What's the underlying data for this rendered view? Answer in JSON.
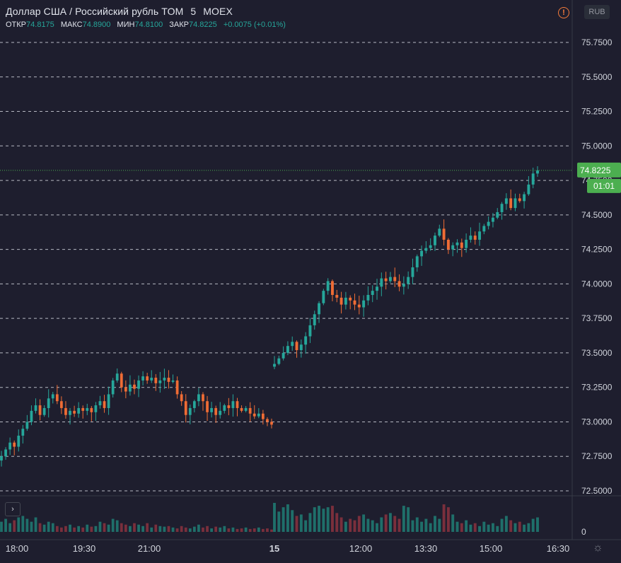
{
  "legend": {
    "title": "Доллар США / Российский рубль TOM",
    "interval": "5",
    "exchange": "MOEX",
    "open_label": "ОТКР",
    "open_value": "74.8175",
    "high_label": "МАКС",
    "high_value": "74.8900",
    "low_label": "МИН",
    "low_value": "74.8100",
    "close_label": "ЗАКР",
    "close_value": "74.8225",
    "change": "+0.0075 (+0.01%)"
  },
  "currency_button": "RUB",
  "expand_button": "›",
  "warning_icon_text": "!",
  "settings_icon": "☼",
  "colors": {
    "background": "#1e1e2e",
    "up": "#26a69a",
    "down": "#ef6c35",
    "grid": "#d1d4dc",
    "last_price": "#4caf50",
    "volume_up": "#1f6f6a",
    "volume_down": "#7a2f3c"
  },
  "chart_data": {
    "type": "candlestick",
    "ylim": [
      72.45,
      75.95
    ],
    "y_ticks": [
      72.5,
      72.75,
      73.0,
      73.25,
      73.5,
      73.75,
      74.0,
      74.25,
      74.5,
      74.75,
      75.0,
      75.25,
      75.5,
      75.75
    ],
    "y_tick_labels": [
      "72.5000",
      "72.7500",
      "73.0000",
      "73.2500",
      "73.5000",
      "73.7500",
      "74.0000",
      "74.2500",
      "74.5000",
      "74.7500",
      "75.0000",
      "75.2500",
      "75.5000",
      "75.7500"
    ],
    "x_tick_labels": [
      "18:00",
      "19:30",
      "21:00",
      "15",
      "12:00",
      "13:30",
      "15:00",
      "16:30"
    ],
    "last_price": 74.8225,
    "last_price_label": "74.8225",
    "countdown_label": "01:01",
    "volume_zero_label": "0",
    "grid": "horizontal-dashed",
    "series": [
      {
        "session": "evening",
        "close": [
          72.75,
          72.8,
          72.85,
          72.82,
          72.9,
          72.95,
          73.0,
          73.08,
          73.12,
          73.05,
          73.1,
          73.17,
          73.2,
          73.15,
          73.1,
          73.05,
          73.08,
          73.06,
          73.1,
          73.08,
          73.1,
          73.07,
          73.12,
          73.15,
          73.1,
          73.2,
          73.3,
          73.35,
          73.25,
          73.22,
          73.27,
          73.24,
          73.3,
          73.33,
          73.3,
          73.32,
          73.28,
          73.3,
          73.32,
          73.29,
          73.3,
          73.2,
          73.15,
          73.05,
          73.1,
          73.15,
          73.2,
          73.15,
          73.07,
          73.1,
          73.05,
          73.08,
          73.12,
          73.1,
          73.15,
          73.1,
          73.08,
          73.1,
          73.06,
          73.04,
          73.06,
          73.02,
          73.0,
          72.98
        ]
      },
      {
        "session": "day",
        "close": [
          73.42,
          73.46,
          73.5,
          73.55,
          73.58,
          73.52,
          73.56,
          73.62,
          73.7,
          73.78,
          73.86,
          73.95,
          74.02,
          73.92,
          73.9,
          73.85,
          73.9,
          73.88,
          73.85,
          73.83,
          73.88,
          73.92,
          73.95,
          73.98,
          74.04,
          74.02,
          74.05,
          74.02,
          73.98,
          74.0,
          74.05,
          74.12,
          74.2,
          74.24,
          74.26,
          74.28,
          74.35,
          74.4,
          74.32,
          74.25,
          74.28,
          74.3,
          74.26,
          74.32,
          74.35,
          74.32,
          74.38,
          74.42,
          74.45,
          74.48,
          74.52,
          74.58,
          74.62,
          74.55,
          74.62,
          74.6,
          74.65,
          74.72,
          74.8,
          74.8225
        ]
      }
    ],
    "volume_relative": {
      "evening": [
        0.35,
        0.45,
        0.3,
        0.4,
        0.5,
        0.55,
        0.45,
        0.35,
        0.5,
        0.3,
        0.25,
        0.35,
        0.3,
        0.2,
        0.15,
        0.2,
        0.25,
        0.15,
        0.2,
        0.15,
        0.25,
        0.18,
        0.2,
        0.35,
        0.3,
        0.25,
        0.45,
        0.4,
        0.3,
        0.25,
        0.2,
        0.3,
        0.25,
        0.2,
        0.3,
        0.15,
        0.25,
        0.2,
        0.18,
        0.2,
        0.15,
        0.12,
        0.2,
        0.15,
        0.12,
        0.18,
        0.25,
        0.15,
        0.2,
        0.12,
        0.18,
        0.15,
        0.2,
        0.12,
        0.15,
        0.1,
        0.12,
        0.15,
        0.1,
        0.12,
        0.15,
        0.1,
        0.12,
        0.08
      ],
      "day": [
        1.0,
        0.7,
        0.85,
        0.95,
        0.75,
        0.55,
        0.6,
        0.4,
        0.65,
        0.85,
        0.9,
        0.8,
        0.85,
        0.9,
        0.65,
        0.5,
        0.35,
        0.45,
        0.4,
        0.55,
        0.6,
        0.45,
        0.4,
        0.3,
        0.5,
        0.6,
        0.65,
        0.55,
        0.45,
        0.9,
        0.85,
        0.4,
        0.5,
        0.35,
        0.45,
        0.3,
        0.55,
        0.45,
        0.95,
        0.85,
        0.6,
        0.35,
        0.3,
        0.4,
        0.25,
        0.3,
        0.2,
        0.35,
        0.25,
        0.3,
        0.2,
        0.45,
        0.55,
        0.4,
        0.3,
        0.35,
        0.25,
        0.3,
        0.45,
        0.5
      ]
    }
  }
}
